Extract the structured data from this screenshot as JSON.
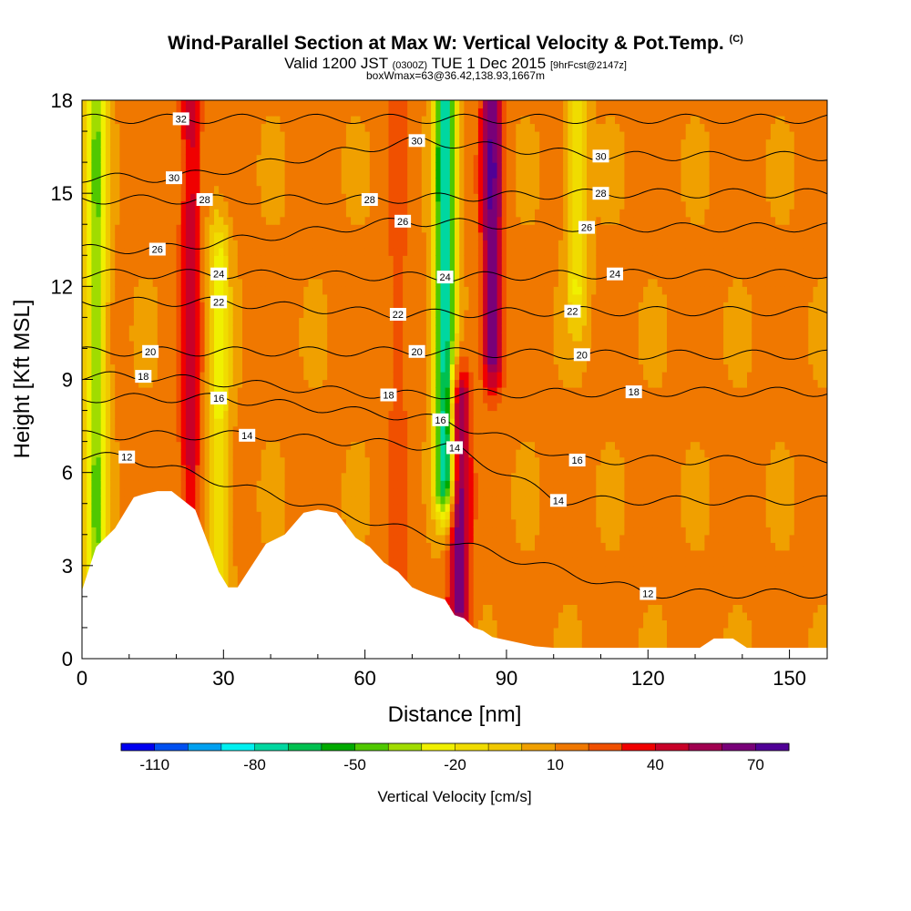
{
  "header": {
    "title": "Wind-Parallel Section at Max W: Vertical Velocity & Pot.Temp.",
    "copyright": "(C)",
    "valid_time": "Valid 1200 JST",
    "valid_utc": "(0300Z)",
    "valid_date": "TUE 1 Dec 2015",
    "forecast_tag": "[9hrFcst@2147z]",
    "box_info": "boxWmax=63@36.42,138.93,1667m"
  },
  "chart_data": {
    "type": "heatmap",
    "xlabel": "Distance [nm]",
    "ylabel": "Height [Kft MSL]",
    "xlim": [
      0,
      158
    ],
    "ylim": [
      0,
      18
    ],
    "x_ticks": [
      0,
      30,
      60,
      90,
      120,
      150
    ],
    "y_ticks": [
      0,
      3,
      6,
      9,
      12,
      15,
      18
    ],
    "colorbar": {
      "label": "Vertical Velocity [cm/s]",
      "tick_labels": [
        "-110",
        "-80",
        "-50",
        "-20",
        "10",
        "40",
        "70"
      ],
      "range": [
        -120,
        80
      ],
      "colors": [
        "#0000f0",
        "#0050f0",
        "#00a0f0",
        "#00f0f0",
        "#00d7a0",
        "#00c050",
        "#00aa00",
        "#50c800",
        "#a0dc00",
        "#f0f000",
        "#f0dc00",
        "#f0c800",
        "#f0a000",
        "#f07800",
        "#f05000",
        "#f00000",
        "#c80028",
        "#a00050",
        "#780078",
        "#500096"
      ],
      "colors_note": "diverging blue-green-yellow-red-purple scale"
    },
    "terrain_profile": {
      "x": [
        0,
        3,
        7,
        9,
        11,
        13,
        16,
        19,
        24,
        27,
        29,
        31,
        33,
        39,
        43,
        47,
        50,
        54,
        58,
        61,
        64,
        67,
        70,
        73,
        77,
        79,
        81,
        83,
        85,
        87,
        90,
        96,
        100,
        110,
        120,
        131,
        134,
        138,
        141,
        158
      ],
      "height_kft": [
        2.2,
        3.6,
        4.2,
        4.7,
        5.2,
        5.3,
        5.4,
        5.4,
        4.8,
        3.6,
        2.8,
        2.3,
        2.3,
        3.7,
        4.0,
        4.7,
        4.8,
        4.7,
        3.9,
        3.6,
        3.1,
        2.8,
        2.3,
        2.1,
        1.9,
        1.4,
        1.3,
        1.0,
        0.9,
        0.7,
        0.6,
        0.4,
        0.35,
        0.35,
        0.35,
        0.35,
        0.65,
        0.65,
        0.35,
        0.35
      ]
    },
    "vertical_velocity_features": [
      {
        "x": 3,
        "z_range": [
          0,
          18
        ],
        "w": -40
      },
      {
        "x": 23,
        "z_range": [
          3,
          18
        ],
        "w": 45
      },
      {
        "x": 29,
        "z_range": [
          3,
          13
        ],
        "w": -22
      },
      {
        "x": 67,
        "z_range": [
          2,
          18
        ],
        "w": 25
      },
      {
        "x": 77,
        "z_range": [
          6,
          18
        ],
        "w": -80
      },
      {
        "x": 80,
        "z_range": [
          2,
          8
        ],
        "w": 70
      },
      {
        "x": 87,
        "z_range": [
          10,
          18
        ],
        "w": 70
      },
      {
        "x": 105,
        "z_range": [
          12,
          18
        ],
        "w": -20
      }
    ],
    "isentrope_labels": [
      {
        "text": "32",
        "x": 21,
        "z": 17.4
      },
      {
        "text": "30",
        "x": 19.5,
        "z": 15.5
      },
      {
        "text": "28",
        "x": 26,
        "z": 14.8
      },
      {
        "text": "26",
        "x": 16,
        "z": 13.2
      },
      {
        "text": "24",
        "x": 29,
        "z": 12.4
      },
      {
        "text": "22",
        "x": 29,
        "z": 11.5
      },
      {
        "text": "20",
        "x": 14.5,
        "z": 9.9
      },
      {
        "text": "18",
        "x": 13,
        "z": 9.1
      },
      {
        "text": "16",
        "x": 29,
        "z": 8.4
      },
      {
        "text": "14",
        "x": 35,
        "z": 7.2
      },
      {
        "text": "12",
        "x": 9.5,
        "z": 6.5
      },
      {
        "text": "30",
        "x": 71,
        "z": 16.7
      },
      {
        "text": "28",
        "x": 61,
        "z": 14.8
      },
      {
        "text": "26",
        "x": 68,
        "z": 14.1
      },
      {
        "text": "24",
        "x": 77,
        "z": 12.3
      },
      {
        "text": "22",
        "x": 67,
        "z": 11.1
      },
      {
        "text": "20",
        "x": 71,
        "z": 9.9
      },
      {
        "text": "18",
        "x": 65,
        "z": 8.5
      },
      {
        "text": "16",
        "x": 76,
        "z": 7.7
      },
      {
        "text": "14",
        "x": 79,
        "z": 6.8
      },
      {
        "text": "30",
        "x": 110,
        "z": 16.2
      },
      {
        "text": "28",
        "x": 110,
        "z": 15.0
      },
      {
        "text": "26",
        "x": 107,
        "z": 13.9
      },
      {
        "text": "24",
        "x": 113,
        "z": 12.4
      },
      {
        "text": "22",
        "x": 104,
        "z": 11.2
      },
      {
        "text": "20",
        "x": 106,
        "z": 9.8
      },
      {
        "text": "18",
        "x": 117,
        "z": 8.6
      },
      {
        "text": "16",
        "x": 105,
        "z": 6.4
      },
      {
        "text": "14",
        "x": 101,
        "z": 5.1
      },
      {
        "text": "12",
        "x": 120,
        "z": 2.1
      }
    ]
  }
}
